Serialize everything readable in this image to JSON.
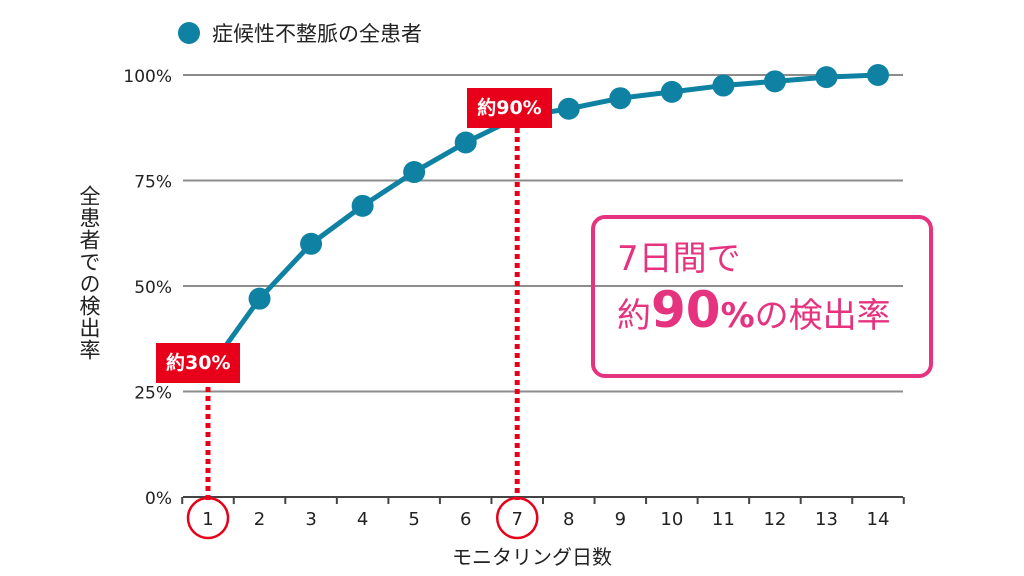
{
  "legend": {
    "label": "症候性不整脈の全患者"
  },
  "chart_data": {
    "type": "line",
    "x": [
      1,
      2,
      3,
      4,
      5,
      6,
      7,
      8,
      9,
      10,
      11,
      12,
      13,
      14
    ],
    "series": [
      {
        "name": "症候性不整脈の全患者",
        "values": [
          30,
          47,
          60,
          69,
          77,
          84,
          90,
          92,
          94.5,
          96,
          97.5,
          98.5,
          99.5,
          100
        ],
        "color": "#0f82a3"
      }
    ],
    "xlabel": "モニタリング日数",
    "ylabel": "全患者での検出率",
    "yticks": [
      "0%",
      "25%",
      "50%",
      "75%",
      "100%"
    ],
    "ylim": [
      0,
      100
    ],
    "xlim": [
      0.5,
      14.5
    ],
    "highlighted_x": [
      1,
      7
    ],
    "grid": true,
    "legend_position": "top-left"
  },
  "callouts": [
    {
      "label": "約30%",
      "x": 1,
      "y": 30
    },
    {
      "label": "約90%",
      "x": 7,
      "y": 90
    }
  ],
  "highlight": {
    "line1": "7日間で",
    "prefix": "約",
    "big": "90",
    "pct": "%",
    "suffix": "の検出率"
  },
  "colors": {
    "line": "#0f82a3",
    "grid": "#8c8c8c",
    "callout": "#e8001a",
    "highlight": "#e6337f"
  }
}
